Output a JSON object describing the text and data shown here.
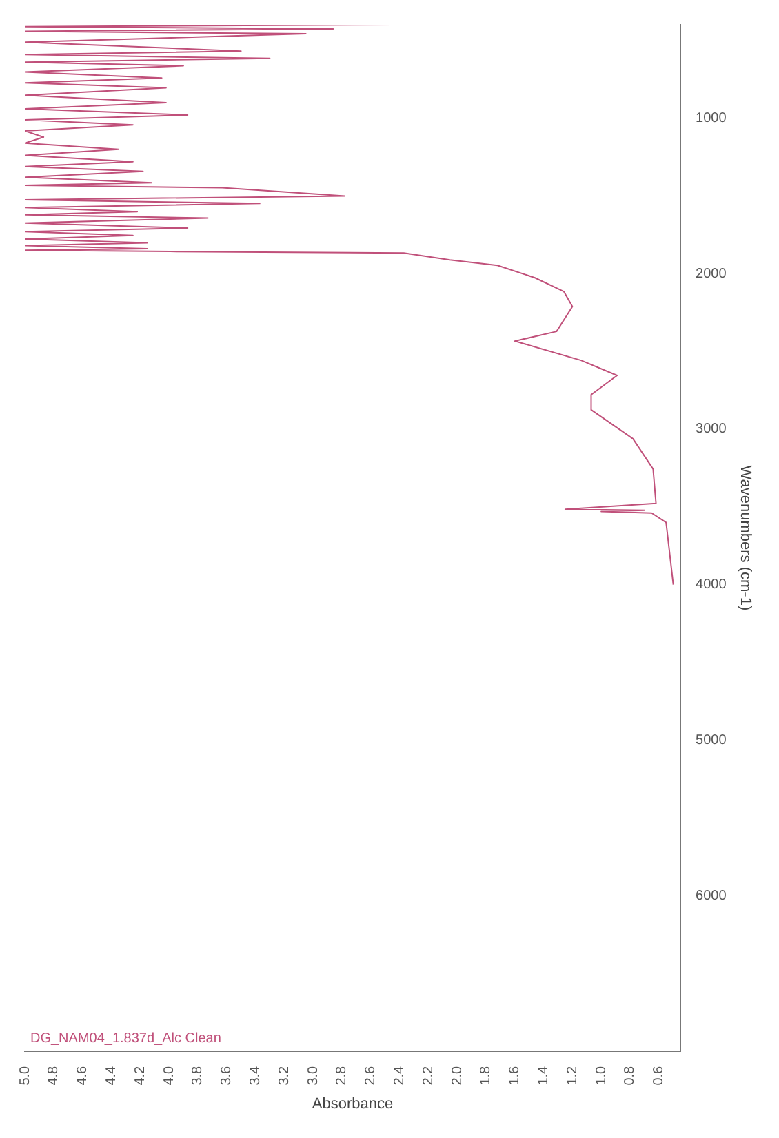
{
  "chart_data": {
    "type": "line",
    "orientation": "horizontal",
    "xlabel": "Absorbance",
    "ylabel": "Wavenumbers (cm-1)",
    "x": [
      400,
      412,
      427,
      442,
      458,
      512,
      569,
      592,
      616,
      640,
      664,
      703,
      742,
      773,
      805,
      853,
      901,
      940,
      980,
      1011,
      1043,
      1082,
      1122,
      1161,
      1201,
      1240,
      1280,
      1311,
      1343,
      1380,
      1416,
      1432,
      1448,
      1501,
      1525,
      1549,
      1575,
      1602,
      1622,
      1643,
      1675,
      1707,
      1730,
      1754,
      1778,
      1802,
      1820,
      1840,
      1850,
      1858,
      1867,
      1912,
      1947,
      2027,
      2115,
      2212,
      2372,
      2434,
      2558,
      2655,
      2779,
      2876,
      3062,
      3257,
      3478,
      3515,
      3522,
      3530,
      3540,
      3600,
      4000
    ],
    "series": [
      {
        "name": "DG_NAM04_1.837d_Alc Clean",
        "color": "#c0507a",
        "values": [
          2.44,
          5.0,
          2.86,
          5.0,
          3.05,
          5.0,
          3.5,
          5.0,
          3.3,
          5.0,
          3.9,
          5.0,
          4.05,
          5.0,
          4.02,
          5.0,
          4.02,
          5.0,
          3.87,
          5.0,
          4.25,
          5.0,
          4.87,
          5.0,
          4.35,
          5.0,
          4.25,
          5.0,
          4.18,
          5.0,
          4.12,
          5.0,
          3.63,
          2.78,
          5.0,
          3.37,
          5.0,
          4.22,
          5.0,
          3.73,
          5.0,
          3.87,
          5.0,
          4.25,
          5.0,
          4.15,
          5.0,
          4.15,
          5.0,
          3.99,
          2.37,
          2.05,
          1.72,
          1.46,
          1.26,
          1.2,
          1.31,
          1.6,
          1.14,
          0.89,
          1.07,
          1.07,
          0.78,
          0.64,
          0.62,
          1.25,
          0.7,
          1.0,
          0.65,
          0.55,
          0.5
        ]
      }
    ],
    "xlim": [
      5.0,
      0.45
    ],
    "xticks": [
      {
        "value": 5.0,
        "label": "5.0"
      },
      4.8,
      4.6,
      4.4,
      4.2,
      {
        "value": 4.0,
        "label": "4.0"
      },
      3.8,
      3.6,
      3.4,
      3.2,
      {
        "value": 3.0,
        "label": "3.0"
      },
      2.8,
      2.6,
      2.4,
      2.2,
      {
        "value": 2.0,
        "label": "2.0"
      },
      1.8,
      1.6,
      1.4,
      1.2,
      {
        "value": 1.0,
        "label": "1.0"
      },
      0.8,
      0.6
    ],
    "ylim": [
      7000,
      400
    ],
    "yticks": [
      1000,
      2000,
      3000,
      4000,
      5000,
      6000
    ],
    "legend": "bottom left",
    "grid": false
  }
}
